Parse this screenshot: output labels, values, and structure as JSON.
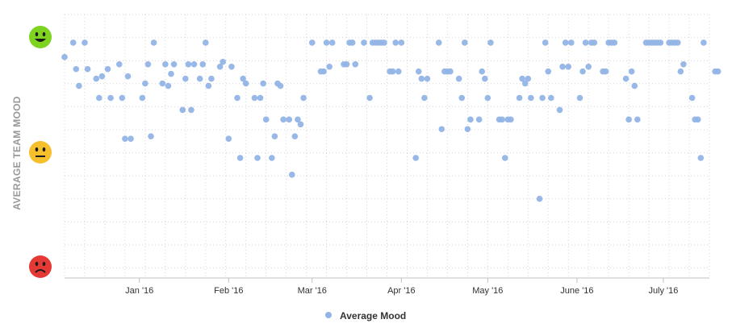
{
  "chart_data": {
    "type": "scatter",
    "title": "",
    "ylabel": "AVERAGE TEAM MOOD",
    "xlabel": "",
    "ylim": [
      0,
      100
    ],
    "y_icons": [
      {
        "name": "happy-face-icon",
        "value": 100,
        "color": "#7ed321"
      },
      {
        "name": "neutral-face-icon",
        "value": 50,
        "color": "#f5c02b"
      },
      {
        "name": "sad-face-icon",
        "value": 0,
        "color": "#e53935"
      }
    ],
    "x_start": "2015-12-06",
    "x_end": "2016-07-17",
    "x_ticks": [
      {
        "label": "Jan '16",
        "date": "2016-01-01"
      },
      {
        "label": "Feb '16",
        "date": "2016-02-01"
      },
      {
        "label": "Mar '16",
        "date": "2016-03-01"
      },
      {
        "label": "Apr '16",
        "date": "2016-04-01"
      },
      {
        "label": "May '16",
        "date": "2016-05-01"
      },
      {
        "label": "June '16",
        "date": "2016-06-01"
      },
      {
        "label": "July '16",
        "date": "2016-07-01"
      }
    ],
    "grid": true,
    "legend_position": "bottom-center",
    "series": [
      {
        "name": "Average Mood",
        "color": "#92b4e6",
        "points": [
          [
            "2015-12-06",
            92
          ],
          [
            "2015-12-09",
            98
          ],
          [
            "2015-12-10",
            87
          ],
          [
            "2015-12-11",
            80
          ],
          [
            "2015-12-13",
            98
          ],
          [
            "2015-12-14",
            87
          ],
          [
            "2015-12-17",
            83
          ],
          [
            "2015-12-18",
            75
          ],
          [
            "2015-12-19",
            84
          ],
          [
            "2015-12-21",
            87
          ],
          [
            "2015-12-22",
            75
          ],
          [
            "2015-12-25",
            89
          ],
          [
            "2015-12-26",
            75
          ],
          [
            "2015-12-27",
            58
          ],
          [
            "2015-12-28",
            84
          ],
          [
            "2015-12-29",
            58
          ],
          [
            "2016-01-02",
            75
          ],
          [
            "2016-01-03",
            81
          ],
          [
            "2016-01-04",
            89
          ],
          [
            "2016-01-05",
            59
          ],
          [
            "2016-01-06",
            98
          ],
          [
            "2016-01-09",
            81
          ],
          [
            "2016-01-10",
            89
          ],
          [
            "2016-01-11",
            80
          ],
          [
            "2016-01-12",
            85
          ],
          [
            "2016-01-13",
            89
          ],
          [
            "2016-01-16",
            70
          ],
          [
            "2016-01-17",
            83
          ],
          [
            "2016-01-18",
            89
          ],
          [
            "2016-01-19",
            70
          ],
          [
            "2016-01-20",
            89
          ],
          [
            "2016-01-22",
            83
          ],
          [
            "2016-01-23",
            89
          ],
          [
            "2016-01-24",
            98
          ],
          [
            "2016-01-25",
            80
          ],
          [
            "2016-01-26",
            83
          ],
          [
            "2016-01-29",
            88
          ],
          [
            "2016-01-30",
            90
          ],
          [
            "2016-02-01",
            58
          ],
          [
            "2016-02-02",
            88
          ],
          [
            "2016-02-04",
            75
          ],
          [
            "2016-02-05",
            50
          ],
          [
            "2016-02-06",
            83
          ],
          [
            "2016-02-07",
            81
          ],
          [
            "2016-02-10",
            75
          ],
          [
            "2016-02-11",
            50
          ],
          [
            "2016-02-12",
            75
          ],
          [
            "2016-02-13",
            81
          ],
          [
            "2016-02-14",
            66
          ],
          [
            "2016-02-16",
            50
          ],
          [
            "2016-02-17",
            59
          ],
          [
            "2016-02-18",
            81
          ],
          [
            "2016-02-19",
            80
          ],
          [
            "2016-02-20",
            66
          ],
          [
            "2016-02-22",
            66
          ],
          [
            "2016-02-23",
            43
          ],
          [
            "2016-02-24",
            59
          ],
          [
            "2016-02-25",
            66
          ],
          [
            "2016-02-26",
            64
          ],
          [
            "2016-02-27",
            75
          ],
          [
            "2016-03-01",
            98
          ],
          [
            "2016-03-04",
            86
          ],
          [
            "2016-03-05",
            86
          ],
          [
            "2016-03-06",
            98
          ],
          [
            "2016-03-07",
            88
          ],
          [
            "2016-03-08",
            98
          ],
          [
            "2016-03-12",
            89
          ],
          [
            "2016-03-13",
            89
          ],
          [
            "2016-03-14",
            98
          ],
          [
            "2016-03-15",
            98
          ],
          [
            "2016-03-16",
            89
          ],
          [
            "2016-03-19",
            98
          ],
          [
            "2016-03-21",
            75
          ],
          [
            "2016-03-22",
            98
          ],
          [
            "2016-03-23",
            98
          ],
          [
            "2016-03-24",
            98
          ],
          [
            "2016-03-25",
            98
          ],
          [
            "2016-03-26",
            98
          ],
          [
            "2016-03-28",
            86
          ],
          [
            "2016-03-29",
            86
          ],
          [
            "2016-03-30",
            98
          ],
          [
            "2016-03-31",
            86
          ],
          [
            "2016-04-01",
            98
          ],
          [
            "2016-04-06",
            50
          ],
          [
            "2016-04-07",
            86
          ],
          [
            "2016-04-08",
            83
          ],
          [
            "2016-04-09",
            75
          ],
          [
            "2016-04-10",
            83
          ],
          [
            "2016-04-14",
            98
          ],
          [
            "2016-04-15",
            62
          ],
          [
            "2016-04-16",
            86
          ],
          [
            "2016-04-17",
            86
          ],
          [
            "2016-04-18",
            86
          ],
          [
            "2016-04-21",
            83
          ],
          [
            "2016-04-22",
            75
          ],
          [
            "2016-04-23",
            98
          ],
          [
            "2016-04-24",
            62
          ],
          [
            "2016-04-25",
            66
          ],
          [
            "2016-04-28",
            66
          ],
          [
            "2016-04-29",
            86
          ],
          [
            "2016-04-30",
            83
          ],
          [
            "2016-05-01",
            75
          ],
          [
            "2016-05-02",
            98
          ],
          [
            "2016-05-05",
            66
          ],
          [
            "2016-05-06",
            66
          ],
          [
            "2016-05-07",
            50
          ],
          [
            "2016-05-08",
            66
          ],
          [
            "2016-05-09",
            66
          ],
          [
            "2016-05-12",
            75
          ],
          [
            "2016-05-13",
            83
          ],
          [
            "2016-05-14",
            81
          ],
          [
            "2016-05-15",
            83
          ],
          [
            "2016-05-16",
            75
          ],
          [
            "2016-05-19",
            33
          ],
          [
            "2016-05-20",
            75
          ],
          [
            "2016-05-21",
            98
          ],
          [
            "2016-05-22",
            86
          ],
          [
            "2016-05-23",
            75
          ],
          [
            "2016-05-26",
            70
          ],
          [
            "2016-05-27",
            88
          ],
          [
            "2016-05-28",
            98
          ],
          [
            "2016-05-29",
            88
          ],
          [
            "2016-05-30",
            98
          ],
          [
            "2016-06-02",
            75
          ],
          [
            "2016-06-03",
            86
          ],
          [
            "2016-06-04",
            98
          ],
          [
            "2016-06-05",
            88
          ],
          [
            "2016-06-06",
            98
          ],
          [
            "2016-06-07",
            98
          ],
          [
            "2016-06-10",
            86
          ],
          [
            "2016-06-11",
            86
          ],
          [
            "2016-06-12",
            98
          ],
          [
            "2016-06-13",
            98
          ],
          [
            "2016-06-14",
            98
          ],
          [
            "2016-06-18",
            83
          ],
          [
            "2016-06-19",
            66
          ],
          [
            "2016-06-20",
            86
          ],
          [
            "2016-06-21",
            80
          ],
          [
            "2016-06-22",
            66
          ],
          [
            "2016-06-25",
            98
          ],
          [
            "2016-06-26",
            98
          ],
          [
            "2016-06-27",
            98
          ],
          [
            "2016-06-28",
            98
          ],
          [
            "2016-06-29",
            98
          ],
          [
            "2016-06-30",
            98
          ],
          [
            "2016-07-03",
            98
          ],
          [
            "2016-07-04",
            98
          ],
          [
            "2016-07-05",
            98
          ],
          [
            "2016-07-06",
            98
          ],
          [
            "2016-07-07",
            86
          ],
          [
            "2016-07-08",
            89
          ],
          [
            "2016-07-11",
            75
          ],
          [
            "2016-07-12",
            66
          ],
          [
            "2016-07-13",
            66
          ],
          [
            "2016-07-14",
            50
          ],
          [
            "2016-07-15",
            98
          ],
          [
            "2016-07-19",
            86
          ],
          [
            "2016-07-20",
            86
          ]
        ]
      }
    ]
  }
}
